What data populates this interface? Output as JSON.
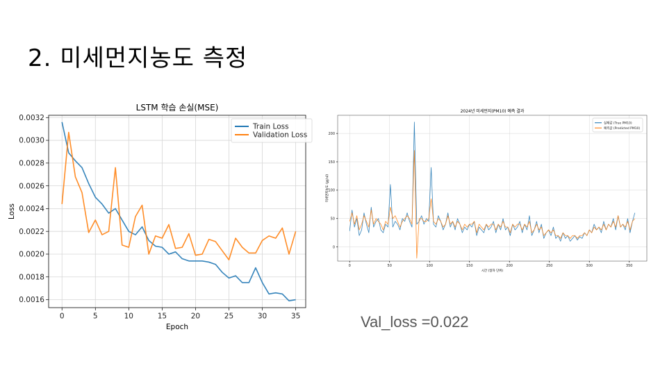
{
  "slide": {
    "title": "2. 미세먼지농도 측정",
    "val_loss_label": "Val_loss =0.022"
  },
  "chart_data": [
    {
      "type": "line",
      "title": "LSTM 학습 손실(MSE)",
      "xlabel": "Epoch",
      "ylabel": "Loss",
      "xlim": [
        -2,
        36.5
      ],
      "ylim": [
        0.00153,
        0.00322
      ],
      "xticks": [
        0,
        5,
        10,
        15,
        20,
        25,
        30,
        35
      ],
      "xtick_labels": [
        "0",
        "5",
        "10",
        "15",
        "20",
        "25",
        "30",
        "35"
      ],
      "yticks": [
        0.0016,
        0.0018,
        0.002,
        0.0022,
        0.0024,
        0.0026,
        0.0028,
        0.003,
        0.0032
      ],
      "ytick_labels": [
        "0.0016",
        "0.0018",
        "0.0020",
        "0.0022",
        "0.0024",
        "0.0026",
        "0.0028",
        "0.0030",
        "0.0032"
      ],
      "grid": true,
      "legend_position": "top-right",
      "x": [
        0,
        1,
        2,
        3,
        4,
        5,
        6,
        7,
        8,
        9,
        10,
        11,
        12,
        13,
        14,
        15,
        16,
        17,
        18,
        19,
        20,
        21,
        22,
        23,
        24,
        25,
        26,
        27,
        28,
        29,
        30,
        31,
        32,
        33,
        34,
        35
      ],
      "series": [
        {
          "name": "Train Loss",
          "color": "#1f77b4",
          "values": [
            0.00316,
            0.00289,
            0.00282,
            0.00276,
            0.00262,
            0.0025,
            0.00244,
            0.00236,
            0.0024,
            0.0023,
            0.0022,
            0.00217,
            0.00224,
            0.00212,
            0.00207,
            0.00206,
            0.002,
            0.00202,
            0.00196,
            0.00194,
            0.00194,
            0.00194,
            0.00193,
            0.00191,
            0.00184,
            0.00179,
            0.00181,
            0.00175,
            0.00175,
            0.00188,
            0.00175,
            0.00165,
            0.00166,
            0.00165,
            0.00159,
            0.0016
          ]
        },
        {
          "name": "Validation Loss",
          "color": "#ff7f0e",
          "values": [
            0.00244,
            0.00307,
            0.00268,
            0.00254,
            0.00219,
            0.0023,
            0.00217,
            0.0022,
            0.00276,
            0.00208,
            0.00206,
            0.00233,
            0.00243,
            0.002,
            0.00216,
            0.00214,
            0.00226,
            0.00205,
            0.00206,
            0.00218,
            0.00199,
            0.002,
            0.00213,
            0.00211,
            0.00203,
            0.00195,
            0.00214,
            0.00206,
            0.00201,
            0.00201,
            0.00212,
            0.00216,
            0.00214,
            0.00223,
            0.002,
            0.0022
          ]
        }
      ]
    },
    {
      "type": "line",
      "title": "2024년 미세먼지(PM10) 예측 결과",
      "xlabel": "시간 (일자 단위)",
      "ylabel": "미세먼지농도 (㎍/㎥)",
      "xlim": [
        -15,
        372
      ],
      "ylim": [
        -25,
        232
      ],
      "xticks": [
        0,
        50,
        100,
        150,
        200,
        250,
        300,
        350
      ],
      "xtick_labels": [
        "0",
        "50",
        "100",
        "150",
        "200",
        "250",
        "300",
        "350"
      ],
      "yticks": [
        0,
        50,
        100,
        150,
        200
      ],
      "ytick_labels": [
        "0",
        "50",
        "100",
        "150",
        "200"
      ],
      "grid": true,
      "legend_position": "top-right",
      "x_start": 0,
      "x_step": 3,
      "series": [
        {
          "name": "실제값 (True PM10)",
          "color": "#1f77b4",
          "values": [
            28,
            65,
            35,
            50,
            20,
            30,
            60,
            40,
            25,
            70,
            35,
            45,
            50,
            30,
            25,
            40,
            35,
            110,
            35,
            45,
            40,
            30,
            50,
            45,
            60,
            45,
            35,
            220,
            40,
            45,
            55,
            40,
            50,
            45,
            140,
            40,
            35,
            55,
            45,
            30,
            40,
            60,
            35,
            45,
            30,
            50,
            40,
            25,
            35,
            30,
            40,
            35,
            45,
            20,
            35,
            30,
            25,
            40,
            30,
            35,
            45,
            25,
            40,
            30,
            50,
            30,
            35,
            20,
            40,
            30,
            35,
            45,
            25,
            40,
            30,
            55,
            20,
            30,
            45,
            25,
            40,
            15,
            25,
            30,
            20,
            35,
            15,
            20,
            10,
            25,
            15,
            20,
            10,
            15,
            20,
            12,
            18,
            15,
            25,
            20,
            30,
            25,
            40,
            30,
            35,
            25,
            45,
            30,
            40,
            35,
            50,
            30,
            55,
            35,
            40,
            30,
            50,
            25,
            45,
            60
          ]
        },
        {
          "name": "예측값 (Predicted PM10)",
          "color": "#ff7f0e",
          "values": [
            45,
            60,
            40,
            55,
            30,
            40,
            55,
            45,
            35,
            65,
            40,
            50,
            45,
            40,
            30,
            45,
            40,
            70,
            50,
            55,
            45,
            35,
            45,
            50,
            55,
            50,
            40,
            170,
            -20,
            50,
            50,
            45,
            45,
            50,
            85,
            45,
            40,
            50,
            45,
            35,
            40,
            55,
            40,
            45,
            35,
            45,
            40,
            30,
            40,
            35,
            40,
            40,
            45,
            25,
            40,
            35,
            30,
            40,
            35,
            40,
            40,
            30,
            40,
            35,
            45,
            35,
            35,
            25,
            40,
            35,
            40,
            40,
            30,
            40,
            35,
            45,
            25,
            30,
            40,
            30,
            35,
            20,
            25,
            30,
            25,
            30,
            20,
            20,
            15,
            25,
            20,
            20,
            15,
            20,
            20,
            15,
            20,
            20,
            25,
            20,
            30,
            25,
            35,
            30,
            35,
            30,
            40,
            30,
            40,
            35,
            45,
            35,
            55,
            35,
            40,
            35,
            45,
            30,
            45,
            50
          ]
        }
      ]
    }
  ]
}
